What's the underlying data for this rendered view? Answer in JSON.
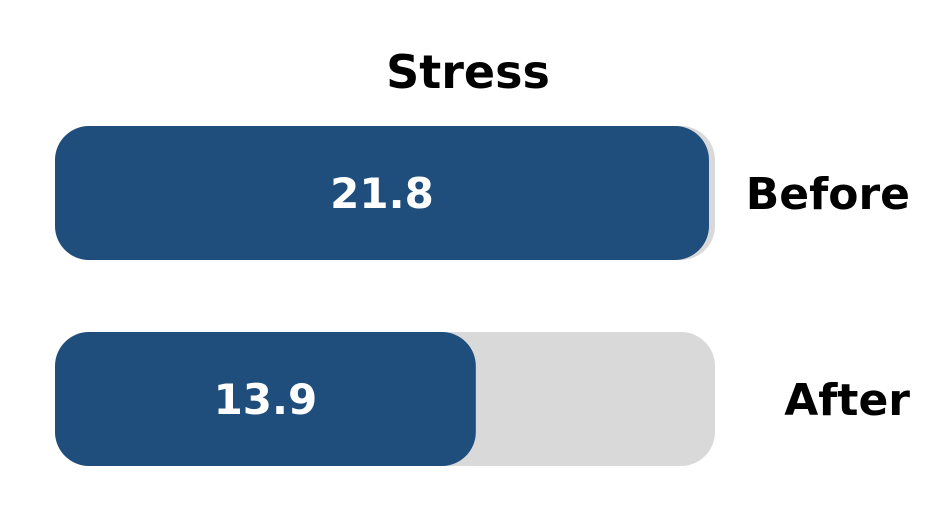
{
  "chart_data": {
    "type": "bar",
    "orientation": "horizontal",
    "title": "Stress",
    "categories": [
      "Before",
      "After"
    ],
    "values": [
      21.8,
      13.9
    ],
    "xlim": [
      0,
      21.8
    ],
    "grid": false,
    "legend": "none",
    "colors": {
      "bar": "#1f4e7d",
      "track": "#d9d9d9"
    }
  }
}
